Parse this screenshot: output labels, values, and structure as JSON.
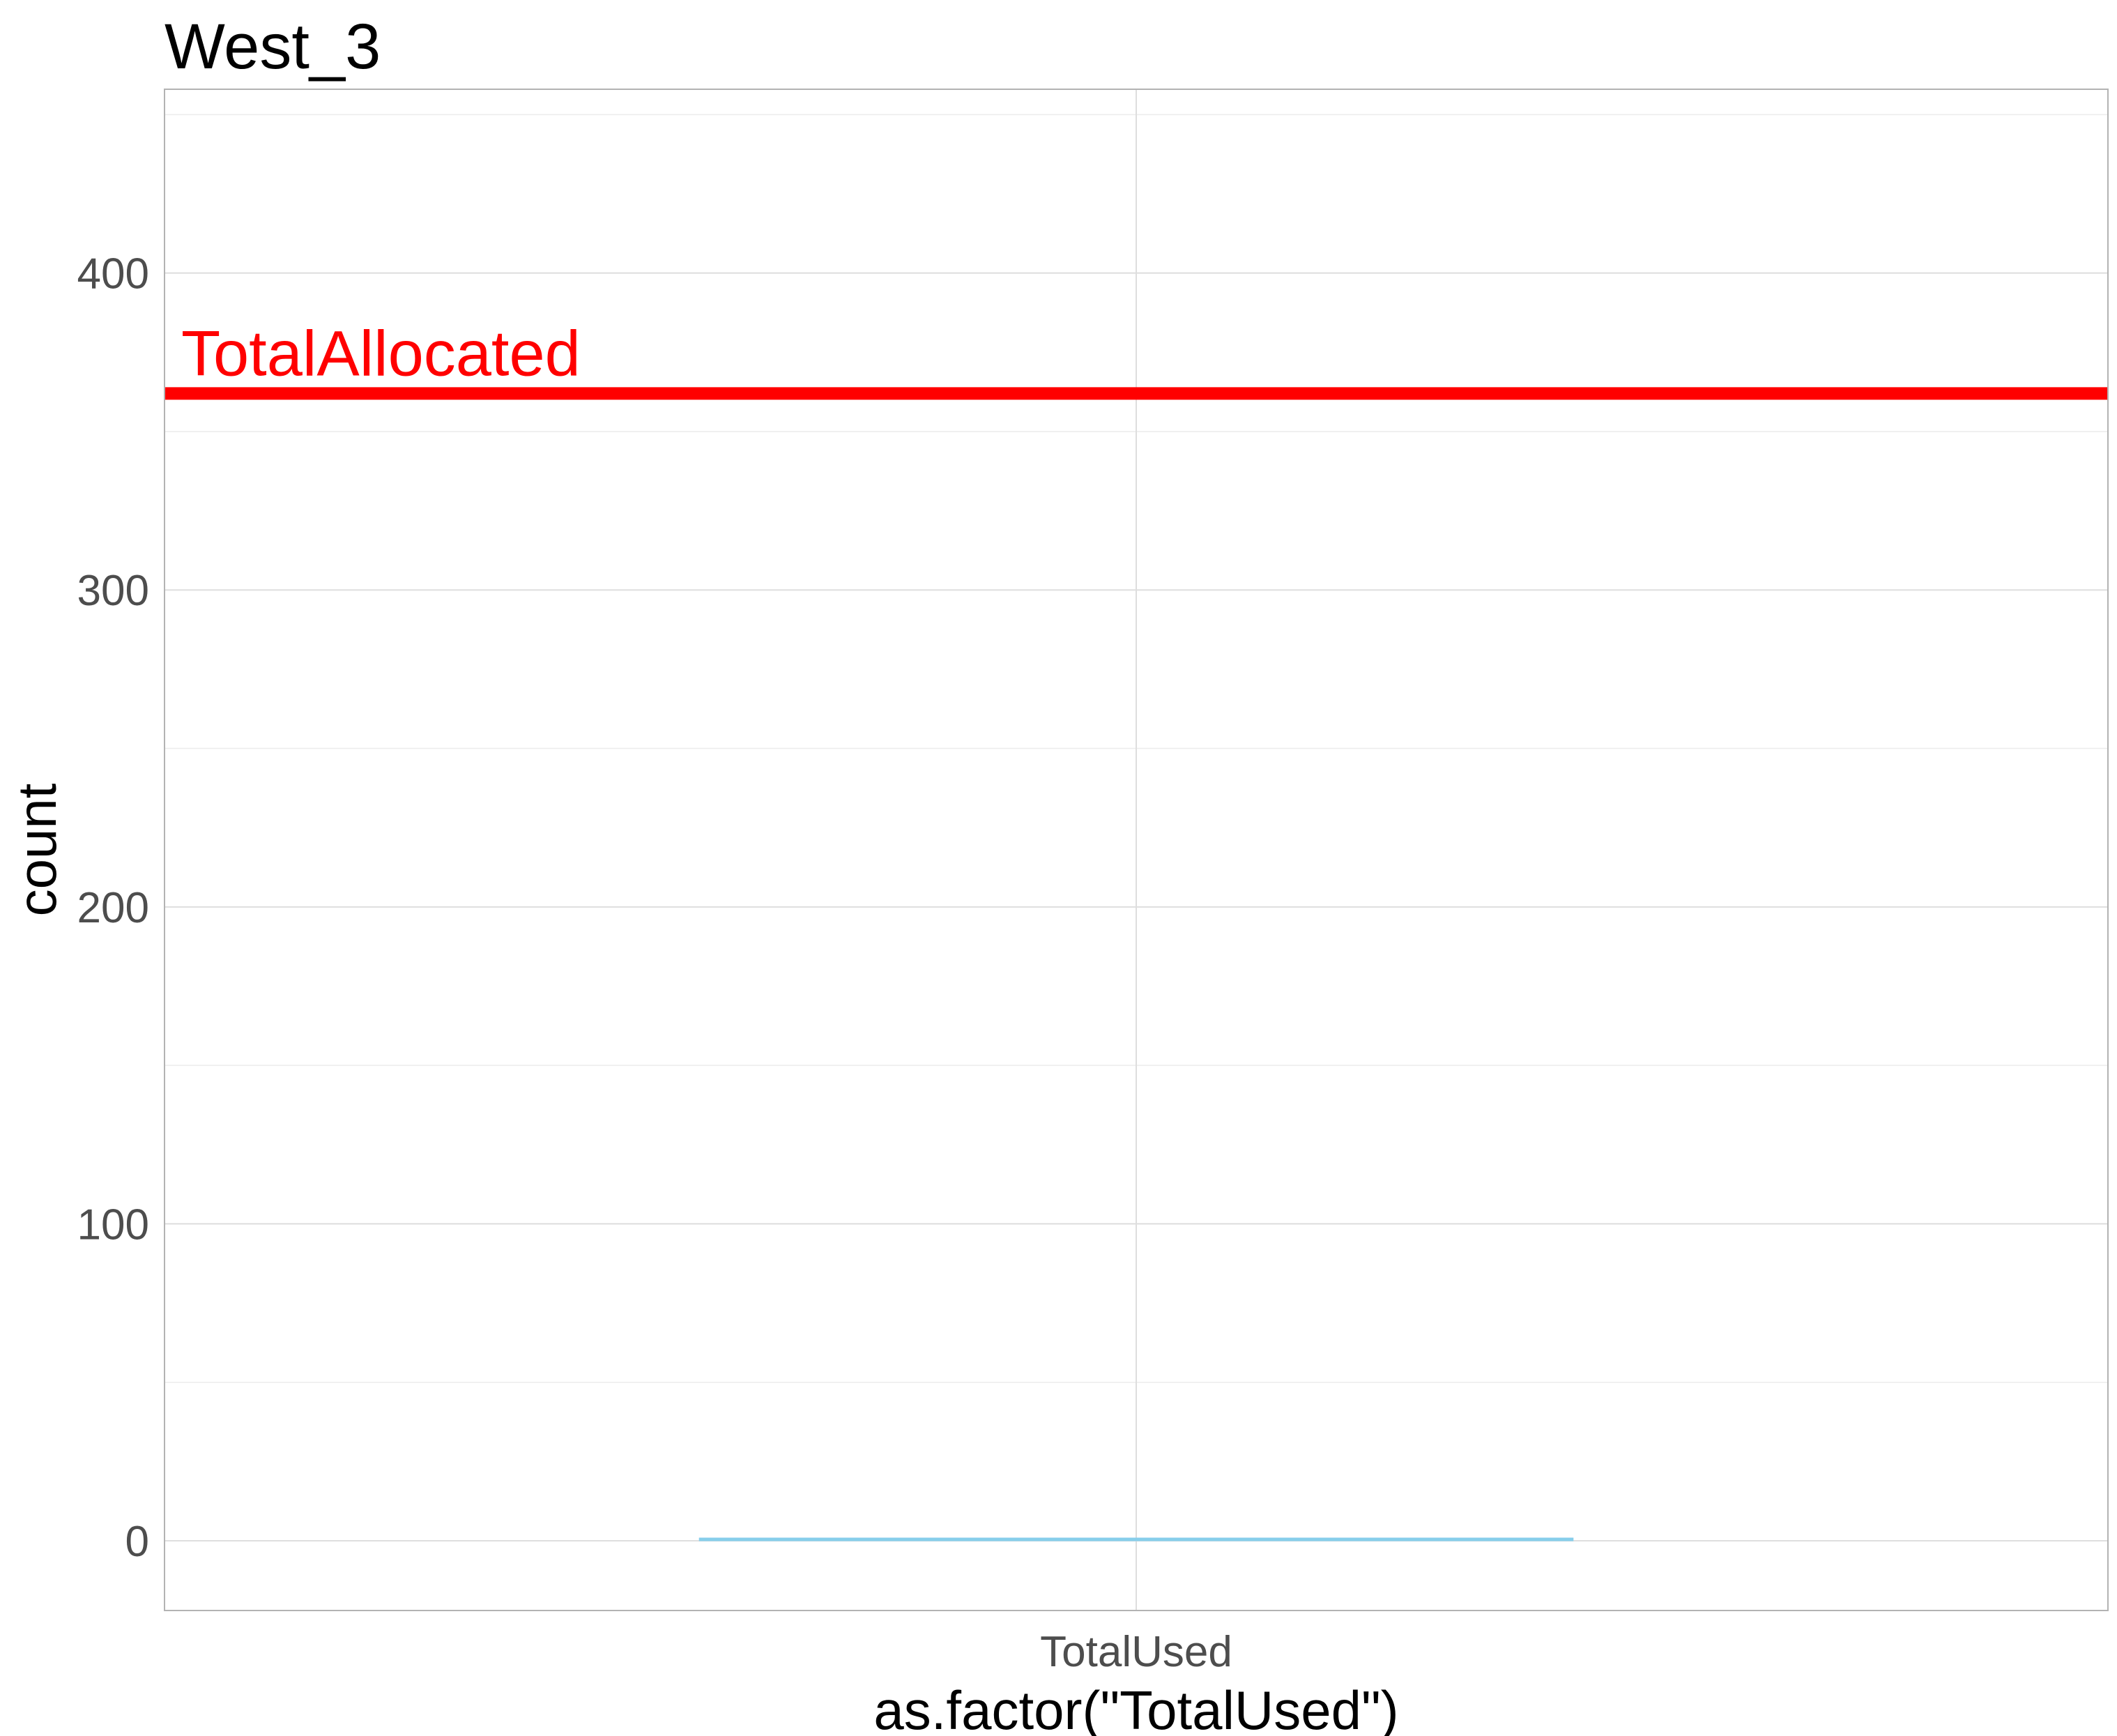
{
  "chart_data": {
    "type": "bar",
    "title": "West_3",
    "xlabel": "as.factor(\"TotalUsed\")",
    "ylabel": "count",
    "categories": [
      "TotalUsed"
    ],
    "series": [
      {
        "values": [
          0
        ],
        "color": "#87ceeb"
      }
    ],
    "hline": {
      "y": 362,
      "label": "TotalAllocated",
      "color": "#ff0000"
    },
    "ylim": [
      -22,
      458
    ],
    "yticks": [
      0,
      100,
      200,
      300,
      400
    ],
    "y_minor_ticks": [
      50,
      150,
      250,
      350,
      450
    ],
    "grid": true,
    "legend": "none",
    "colors": {
      "panel_border": "#b3b3b3",
      "grid": "#dedede",
      "tick_text": "#4d4d4d"
    }
  }
}
